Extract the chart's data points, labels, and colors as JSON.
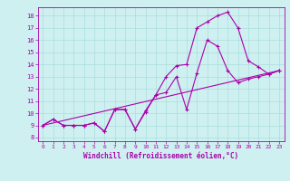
{
  "xlabel": "Windchill (Refroidissement éolien,°C)",
  "background_color": "#cff0f0",
  "grid_color": "#aadddd",
  "line_color": "#aa00aa",
  "xlim": [
    -0.5,
    23.5
  ],
  "ylim": [
    7.7,
    18.7
  ],
  "xticks": [
    0,
    1,
    2,
    3,
    4,
    5,
    6,
    7,
    8,
    9,
    10,
    11,
    12,
    13,
    14,
    15,
    16,
    17,
    18,
    19,
    20,
    21,
    22,
    23
  ],
  "yticks": [
    8,
    9,
    10,
    11,
    12,
    13,
    14,
    15,
    16,
    17,
    18
  ],
  "series1_x": [
    0,
    1,
    2,
    3,
    4,
    5,
    6,
    7,
    8,
    9,
    10,
    11,
    12,
    13,
    14,
    15,
    16,
    17,
    18,
    19,
    20,
    21,
    22,
    23
  ],
  "series1_y": [
    9.0,
    9.5,
    9.0,
    9.0,
    9.0,
    9.2,
    8.5,
    10.3,
    10.3,
    8.7,
    10.2,
    11.5,
    13.0,
    13.9,
    14.0,
    17.0,
    17.5,
    18.0,
    18.3,
    17.0,
    14.3,
    13.8,
    13.2,
    13.5
  ],
  "series2_x": [
    0,
    1,
    2,
    3,
    4,
    5,
    6,
    7,
    8,
    9,
    10,
    11,
    12,
    13,
    14,
    15,
    16,
    17,
    18,
    19,
    20,
    21,
    22,
    23
  ],
  "series2_y": [
    9.0,
    9.5,
    9.0,
    9.0,
    9.0,
    9.2,
    8.5,
    10.3,
    10.3,
    8.7,
    10.1,
    11.5,
    11.7,
    13.0,
    10.3,
    13.3,
    16.0,
    15.5,
    13.5,
    12.5,
    12.8,
    13.0,
    13.2,
    13.5
  ],
  "series3_x": [
    0,
    23
  ],
  "series3_y": [
    9.0,
    13.5
  ]
}
